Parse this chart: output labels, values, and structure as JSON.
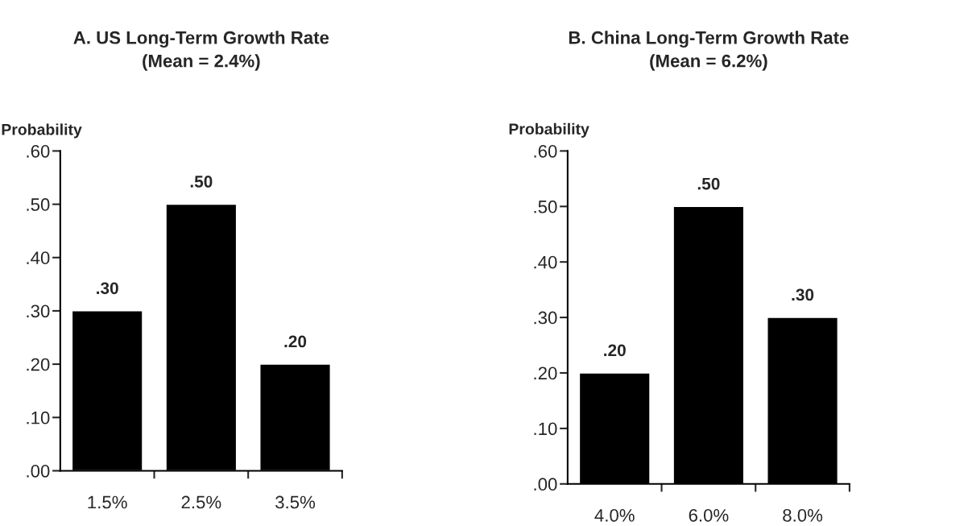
{
  "chart_data": [
    {
      "type": "bar",
      "title": "A. US Long-Term Growth Rate\n(Mean = 2.4%)",
      "ylabel": "Probability",
      "categories": [
        "1.5%",
        "2.5%",
        "3.5%"
      ],
      "values": [
        0.3,
        0.5,
        0.2
      ],
      "value_labels": [
        ".30",
        ".50",
        ".20"
      ],
      "color": "#000000",
      "ylim": [
        0,
        0.6
      ],
      "yticks": [
        {
          "value": 0,
          "label": ".00"
        },
        {
          "value": 0.1,
          "label": ".10"
        },
        {
          "value": 0.2,
          "label": ".20"
        },
        {
          "value": 0.3,
          "label": ".30"
        },
        {
          "value": 0.4,
          "label": ".40"
        },
        {
          "value": 0.5,
          "label": ".50"
        },
        {
          "value": 0.6,
          "label": ".60"
        }
      ]
    },
    {
      "type": "bar",
      "title": "B. China Long-Term Growth Rate\n(Mean = 6.2%)",
      "ylabel": "Probability",
      "categories": [
        "4.0%",
        "6.0%",
        "8.0%"
      ],
      "values": [
        0.2,
        0.5,
        0.3
      ],
      "value_labels": [
        ".20",
        ".50",
        ".30"
      ],
      "color": "#000000",
      "ylim": [
        0,
        0.6
      ],
      "yticks": [
        {
          "value": 0,
          "label": ".00"
        },
        {
          "value": 0.1,
          "label": ".10"
        },
        {
          "value": 0.2,
          "label": ".20"
        },
        {
          "value": 0.3,
          "label": ".30"
        },
        {
          "value": 0.4,
          "label": ".40"
        },
        {
          "value": 0.5,
          "label": ".50"
        },
        {
          "value": 0.6,
          "label": ".60"
        }
      ]
    }
  ]
}
